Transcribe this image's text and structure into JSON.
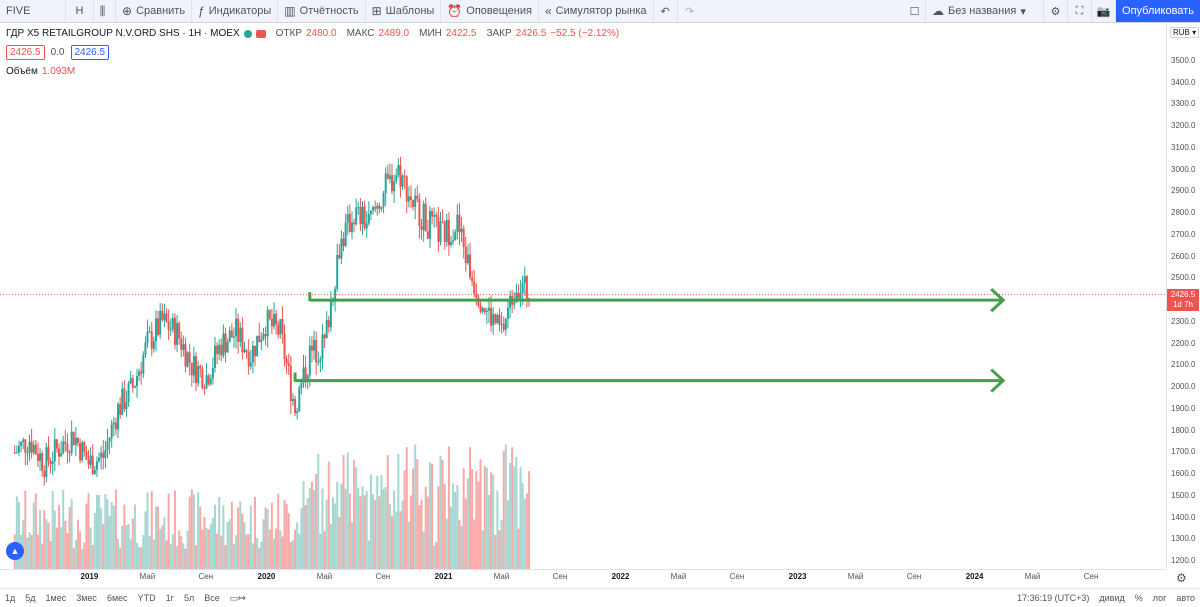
{
  "toolbar": {
    "symbol": "FIVE",
    "interval": "H",
    "compare": "Сравнить",
    "indicators": "Индикаторы",
    "reports": "Отчётность",
    "templates": "Шаблоны",
    "alerts": "Оповещения",
    "replay": "Симулятор рынка",
    "layout_name": "Без названия",
    "publish": "Опубликовать"
  },
  "legend": {
    "title": "ГДР X5 RETAILGROUP N.V.ORD SHS · 1Н · MOEX",
    "open_label": "ОТКР",
    "open": "2480.0",
    "high_label": "МАКС",
    "high": "2489.0",
    "low_label": "МИН",
    "low": "2422.5",
    "close_label": "ЗАКР",
    "close": "2426.5",
    "change": "−52.5 (−2.12%)",
    "bid": "2426.5",
    "spread": "0.0",
    "ask": "2426.5",
    "volume_label": "Объём",
    "volume": "1.093M"
  },
  "price_axis": {
    "currency": "RUB",
    "ticks": [
      "3500.0",
      "3400.0",
      "3300.0",
      "3200.0",
      "3100.0",
      "3000.0",
      "2900.0",
      "2800.0",
      "2700.0",
      "2600.0",
      "2500.0",
      "2400.0",
      "2300.0",
      "2200.0",
      "2100.0",
      "2000.0",
      "1900.0",
      "1800.0",
      "1700.0",
      "1600.0",
      "1500.0",
      "1400.0",
      "1300.0",
      "1200.0"
    ],
    "current_price": "2426.5",
    "countdown": "1d 7h"
  },
  "time_axis": {
    "labels": [
      "2019",
      "Май",
      "Сен",
      "2020",
      "Май",
      "Сен",
      "2021",
      "Май",
      "Сен",
      "2022",
      "Май",
      "Сен",
      "2023",
      "Май",
      "Сен",
      "2024",
      "Май",
      "Сен"
    ]
  },
  "bottom": {
    "ranges": [
      "1д",
      "5д",
      "1мес",
      "3мес",
      "6мес",
      "YTD",
      "1г",
      "5л",
      "Все"
    ],
    "clock": "17:36:19 (UTC+3)",
    "dividends": "дивид",
    "percent": "%",
    "log": "лог",
    "auto": "авто"
  },
  "colors": {
    "up": "#26a69a",
    "down": "#ef5350",
    "arrow": "#43a047",
    "accent": "#2962ff"
  },
  "chart_data": {
    "type": "candlestick",
    "title": "ГДР X5 RETAILGROUP N.V.ORD SHS · 1Н · MOEX",
    "ylim": [
      1200,
      3500
    ],
    "x_range": [
      "2018-07",
      "2024-12"
    ],
    "annotations": [
      {
        "type": "arrow",
        "from": "2020-04",
        "to": "2024-03",
        "price": 2400
      },
      {
        "type": "arrow",
        "from": "2020-03",
        "to": "2024-03",
        "price": 2030
      }
    ],
    "weekly_close": [
      {
        "t": "2018-08",
        "c": 1700
      },
      {
        "t": "2018-09",
        "c": 1760
      },
      {
        "t": "2018-10",
        "c": 1650
      },
      {
        "t": "2018-11",
        "c": 1720
      },
      {
        "t": "2018-12",
        "c": 1780
      },
      {
        "t": "2019-01",
        "c": 1650
      },
      {
        "t": "2019-02",
        "c": 1680
      },
      {
        "t": "2019-03",
        "c": 1900
      },
      {
        "t": "2019-04",
        "c": 2000
      },
      {
        "t": "2019-05",
        "c": 2200
      },
      {
        "t": "2019-06",
        "c": 2300
      },
      {
        "t": "2019-07",
        "c": 2250
      },
      {
        "t": "2019-08",
        "c": 2100
      },
      {
        "t": "2019-09",
        "c": 2050
      },
      {
        "t": "2019-10",
        "c": 2200
      },
      {
        "t": "2019-11",
        "c": 2250
      },
      {
        "t": "2019-12",
        "c": 2150
      },
      {
        "t": "2020-01",
        "c": 2300
      },
      {
        "t": "2020-02",
        "c": 2250
      },
      {
        "t": "2020-03",
        "c": 1900
      },
      {
        "t": "2020-04",
        "c": 2150
      },
      {
        "t": "2020-05",
        "c": 2200
      },
      {
        "t": "2020-06",
        "c": 2650
      },
      {
        "t": "2020-07",
        "c": 2800
      },
      {
        "t": "2020-08",
        "c": 2750
      },
      {
        "t": "2020-09",
        "c": 2900
      },
      {
        "t": "2020-10",
        "c": 3000
      },
      {
        "t": "2020-11",
        "c": 2850
      },
      {
        "t": "2020-12",
        "c": 2750
      },
      {
        "t": "2021-01",
        "c": 2700
      },
      {
        "t": "2021-02",
        "c": 2750
      },
      {
        "t": "2021-03",
        "c": 2500
      },
      {
        "t": "2021-04",
        "c": 2350
      },
      {
        "t": "2021-05",
        "c": 2250
      },
      {
        "t": "2021-06",
        "c": 2480
      },
      {
        "t": "2021-07",
        "c": 2426.5
      }
    ]
  }
}
